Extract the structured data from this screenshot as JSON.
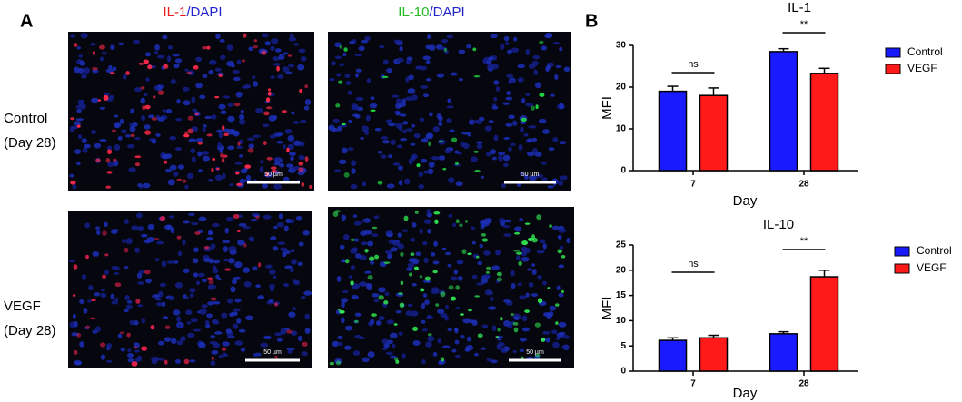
{
  "panel_a": {
    "label": "A",
    "column_titles": [
      {
        "marker": "IL-1",
        "stain": "/DAPI"
      },
      {
        "marker": "IL-10",
        "stain": "/DAPI"
      }
    ],
    "row_labels": [
      {
        "group": "Control",
        "day": "(Day 28)"
      },
      {
        "group": "VEGF",
        "day": "(Day 28)"
      }
    ],
    "scale_bar": "50 µm"
  },
  "panel_b": {
    "label": "B"
  },
  "chart_data": [
    {
      "type": "bar",
      "title": "IL-1",
      "x_label": "Day",
      "y_label": "MFI",
      "categories": [
        "7",
        "28"
      ],
      "series": [
        {
          "name": "Control",
          "color": "#1a1aff",
          "values": [
            19,
            28.5
          ],
          "errors": [
            1.2,
            0.7
          ]
        },
        {
          "name": "VEGF",
          "color": "#ff1a1a",
          "values": [
            18,
            23.3
          ],
          "errors": [
            1.8,
            1.2
          ]
        }
      ],
      "annotations": [
        "ns",
        "**"
      ],
      "ylim": [
        0,
        30
      ],
      "yticks": [
        0,
        10,
        20,
        30
      ]
    },
    {
      "type": "bar",
      "title": "IL-10",
      "x_label": "Day",
      "y_label": "MFI",
      "categories": [
        "7",
        "28"
      ],
      "series": [
        {
          "name": "Control",
          "color": "#1a1aff",
          "values": [
            6.1,
            7.4
          ],
          "errors": [
            0.5,
            0.4
          ]
        },
        {
          "name": "VEGF",
          "color": "#ff1a1a",
          "values": [
            6.6,
            18.7
          ],
          "errors": [
            0.5,
            1.3
          ]
        }
      ],
      "annotations": [
        "ns",
        "**"
      ],
      "ylim": [
        0,
        25
      ],
      "yticks": [
        0,
        5,
        10,
        15,
        20,
        25
      ]
    }
  ]
}
